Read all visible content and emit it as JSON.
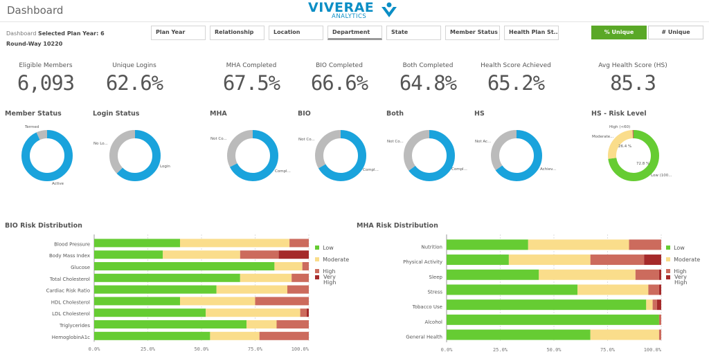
{
  "app": {
    "title": "Dashboard",
    "logo_main": "VIVERAE",
    "logo_sub": "ANALYTICS"
  },
  "selections": {
    "prefix": "Dashboard",
    "label": "Selected Plan Year: 6",
    "value": "Round-Way 10220"
  },
  "filters": [
    "Plan Year",
    "Relationship",
    "Location",
    "Department",
    "State",
    "Member Status",
    "Health Plan St..."
  ],
  "toggles": {
    "pct": "% Unique",
    "num": "# Unique"
  },
  "colors": {
    "low": "#66cc33",
    "moderate": "#fadd8b",
    "high": "#cc6b5d",
    "very_high": "#a52a2a",
    "ring": "#1aa3dc",
    "gray": "#bbbbbb",
    "accent": "#5aa827"
  },
  "kpis": [
    {
      "label": "Eligible Members",
      "value": "6,093"
    },
    {
      "label": "Unique Logins",
      "value": "62.6%"
    },
    {
      "label": "MHA Completed",
      "value": "67.5%"
    },
    {
      "label": "BIO Completed",
      "value": "66.6%"
    },
    {
      "label": "Both Completed",
      "value": "64.8%"
    },
    {
      "label": "Health Score Achieved",
      "value": "65.2%"
    },
    {
      "label": "Avg Health Score (HS)",
      "value": "85.3"
    }
  ],
  "donuts": [
    {
      "title": "Member Status",
      "a": "Termed",
      "b": "Active",
      "frac": 0.93
    },
    {
      "title": "Login Status",
      "a": "No Lo...",
      "b": "Login",
      "frac": 0.626
    },
    {
      "title": "MHA",
      "a": "Not Co...",
      "b": "Compl...",
      "frac": 0.675
    },
    {
      "title": "BIO",
      "a": "Not Co...",
      "b": "Compl...",
      "frac": 0.666
    },
    {
      "title": "Both",
      "a": "Not Co...",
      "b": "Compl...",
      "frac": 0.648
    },
    {
      "title": "HS",
      "a": "Not Ac...",
      "b": "Achiev...",
      "frac": 0.652
    }
  ],
  "hs_risk": {
    "title": "HS - Risk Level",
    "high": "High (<60)",
    "moderate": "Moderate...",
    "low": "Low (100...",
    "pct_moderate": "26.4 %",
    "pct_low": "72.8 %",
    "frac_low": 0.728,
    "frac_moderate": 0.264,
    "frac_high": 0.008
  },
  "legend": {
    "low": "Low",
    "moderate": "Moderate",
    "high": "High",
    "very_high_1": "Very",
    "very_high_2": "High"
  },
  "axis_ticks": [
    "0.0%",
    "25.0%",
    "50.0%",
    "75.0%",
    "100.0%"
  ],
  "chart_data": [
    {
      "type": "bar",
      "orientation": "horizontal",
      "stacked": true,
      "title": "BIO Risk Distribution",
      "categories": [
        "Blood Pressure",
        "Body Mass Index",
        "Glucose",
        "Total Cholesterol",
        "Cardiac Risk Ratio",
        "HDL Cholesterol",
        "LDL Cholesterol",
        "Triglycerides",
        "HemoglobinA1c"
      ],
      "series": [
        {
          "name": "Low",
          "values": [
            40,
            32,
            84,
            68,
            57,
            40,
            52,
            71,
            54
          ]
        },
        {
          "name": "Moderate",
          "values": [
            51,
            36,
            13,
            24,
            33,
            35,
            44,
            14,
            23
          ]
        },
        {
          "name": "High",
          "values": [
            9,
            18,
            3,
            8,
            10,
            25,
            3,
            15,
            23
          ]
        },
        {
          "name": "Very High",
          "values": [
            0,
            14,
            0,
            0,
            0,
            0,
            1,
            0,
            0
          ]
        }
      ],
      "xlim": [
        0,
        100
      ]
    },
    {
      "type": "bar",
      "orientation": "horizontal",
      "stacked": true,
      "title": "MHA Risk Distribution",
      "categories": [
        "Nutrition",
        "Physical Activity",
        "Sleep",
        "Stress",
        "Tobacco Use",
        "Alcohol",
        "General Health"
      ],
      "series": [
        {
          "name": "Low",
          "values": [
            38,
            29,
            43,
            61,
            93,
            99,
            67
          ]
        },
        {
          "name": "Moderate",
          "values": [
            47,
            38,
            45,
            33,
            3,
            0,
            32
          ]
        },
        {
          "name": "High",
          "values": [
            15,
            25,
            11,
            5,
            2,
            1,
            1
          ]
        },
        {
          "name": "Very High",
          "values": [
            0,
            8,
            1,
            1,
            2,
            0,
            0
          ]
        }
      ],
      "xlim": [
        0,
        100
      ]
    }
  ]
}
